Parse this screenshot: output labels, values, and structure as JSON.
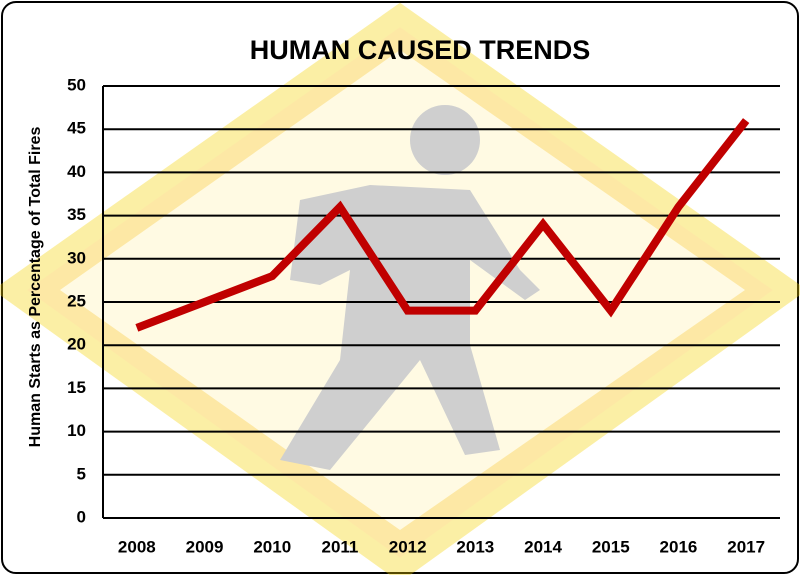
{
  "chart_data": {
    "type": "line",
    "title": "HUMAN CAUSED TRENDS",
    "y_label": "Human Starts as Percentage of Total Fires",
    "categories": [
      "2008",
      "2009",
      "2010",
      "2011",
      "2012",
      "2013",
      "2014",
      "2015",
      "2016",
      "2017"
    ],
    "values": [
      22,
      25,
      28,
      36,
      24,
      24,
      34,
      24,
      36,
      46
    ],
    "color": "#c00000",
    "ylim": [
      0,
      50
    ],
    "yticks": [
      0,
      5,
      10,
      15,
      20,
      25,
      30,
      35,
      40,
      45,
      50
    ],
    "grid": true
  }
}
